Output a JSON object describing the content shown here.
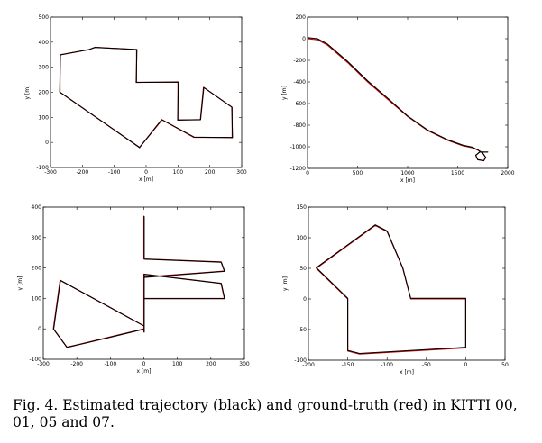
{
  "caption": "Fig. 4.  Estimated trajectory (black) and ground-truth (red) in KITTI 00, 01, 05 and 07.",
  "legend_colors": {
    "estimated": "#000000",
    "ground_truth": "#cc0000"
  },
  "chart_data": [
    {
      "type": "line",
      "name": "KITTI 00",
      "xlabel": "x [m]",
      "ylabel": "y [m]",
      "xlim": [
        -300,
        300
      ],
      "ylim": [
        -100,
        500
      ],
      "xticks": [
        -300,
        -200,
        -100,
        0,
        100,
        200,
        300
      ],
      "yticks": [
        -100,
        0,
        100,
        200,
        300,
        400,
        500
      ],
      "series": [
        {
          "name": "ground truth",
          "color": "#cc0000",
          "x": [
            -20,
            -270,
            -270,
            -180,
            -160,
            -30,
            -30,
            100,
            100,
            170,
            180,
            270,
            270,
            150,
            50,
            -20
          ],
          "y": [
            -20,
            200,
            350,
            370,
            380,
            370,
            240,
            240,
            90,
            90,
            220,
            140,
            20,
            20,
            90,
            -20
          ]
        },
        {
          "name": "estimated",
          "color": "#000000",
          "x": [
            -20,
            -271,
            -269,
            -179,
            -160,
            -29,
            -31,
            101,
            99,
            171,
            181,
            269,
            271,
            151,
            49,
            -20
          ],
          "y": [
            -21,
            201,
            349,
            371,
            379,
            371,
            239,
            241,
            89,
            91,
            219,
            141,
            19,
            21,
            91,
            -19
          ]
        }
      ]
    },
    {
      "type": "line",
      "name": "KITTI 01",
      "xlabel": "x [m]",
      "ylabel": "y [m]",
      "xlim": [
        0,
        2000
      ],
      "ylim": [
        -1200,
        200
      ],
      "xticks": [
        0,
        500,
        1000,
        1500,
        2000
      ],
      "yticks": [
        -1200,
        -1000,
        -800,
        -600,
        -400,
        -200,
        0,
        200
      ],
      "series": [
        {
          "name": "ground truth",
          "color": "#cc0000",
          "x": [
            0,
            100,
            200,
            400,
            600,
            800,
            1000,
            1200,
            1400,
            1550,
            1650,
            1700,
            1750,
            1780,
            1760,
            1700,
            1680,
            1720,
            1800
          ],
          "y": [
            0,
            -10,
            -60,
            -220,
            -400,
            -560,
            -720,
            -850,
            -940,
            -990,
            -1010,
            -1030,
            -1060,
            -1100,
            -1130,
            -1120,
            -1080,
            -1050,
            -1050
          ]
        },
        {
          "name": "estimated",
          "color": "#000000",
          "x": [
            0,
            100,
            200,
            400,
            600,
            800,
            1000,
            1200,
            1400,
            1550,
            1650,
            1700,
            1750,
            1780,
            1760,
            1700,
            1680,
            1720,
            1800
          ],
          "y": [
            10,
            0,
            -50,
            -210,
            -390,
            -550,
            -715,
            -845,
            -935,
            -985,
            -1005,
            -1028,
            -1058,
            -1098,
            -1128,
            -1118,
            -1078,
            -1048,
            -1048
          ]
        }
      ]
    },
    {
      "type": "line",
      "name": "KITTI 05",
      "xlabel": "x [m]",
      "ylabel": "y [m]",
      "xlim": [
        -300,
        300
      ],
      "ylim": [
        -100,
        400
      ],
      "xticks": [
        -300,
        -200,
        -100,
        0,
        100,
        200,
        300
      ],
      "yticks": [
        -100,
        0,
        100,
        200,
        300,
        400
      ],
      "series": [
        {
          "name": "ground truth",
          "color": "#cc0000",
          "x": [
            0,
            0,
            230,
            240,
            0,
            0,
            -250,
            -270,
            -230,
            -190,
            0,
            0,
            230,
            240,
            0,
            0
          ],
          "y": [
            370,
            230,
            220,
            190,
            170,
            10,
            160,
            0,
            -60,
            -50,
            0,
            180,
            150,
            100,
            100,
            -10
          ]
        },
        {
          "name": "estimated",
          "color": "#000000",
          "x": [
            1,
            1,
            231,
            241,
            1,
            1,
            -249,
            -269,
            -229,
            -189,
            1,
            1,
            231,
            241,
            1,
            1
          ],
          "y": [
            369,
            229,
            219,
            189,
            169,
            9,
            159,
            -1,
            -61,
            -51,
            -1,
            179,
            149,
            99,
            99,
            -11
          ]
        }
      ]
    },
    {
      "type": "line",
      "name": "KITTI 07",
      "xlabel": "x [m]",
      "ylabel": "y [m]",
      "xlim": [
        -200,
        50
      ],
      "ylim": [
        -100,
        150
      ],
      "xticks": [
        -200,
        -150,
        -100,
        -50,
        0,
        50
      ],
      "yticks": [
        -100,
        -50,
        0,
        50,
        100,
        150
      ],
      "series": [
        {
          "name": "ground truth",
          "color": "#cc0000",
          "x": [
            0,
            -70,
            -80,
            -100,
            -115,
            -190,
            -150,
            -150,
            -135,
            0,
            0
          ],
          "y": [
            0,
            0,
            50,
            110,
            120,
            50,
            0,
            -85,
            -90,
            -80,
            0
          ]
        },
        {
          "name": "estimated",
          "color": "#000000",
          "x": [
            0,
            -70,
            -80,
            -100,
            -115,
            -190,
            -150,
            -150,
            -135,
            0,
            0
          ],
          "y": [
            1,
            1,
            51,
            111,
            121,
            51,
            1,
            -84,
            -89,
            -79,
            1
          ]
        }
      ]
    }
  ]
}
